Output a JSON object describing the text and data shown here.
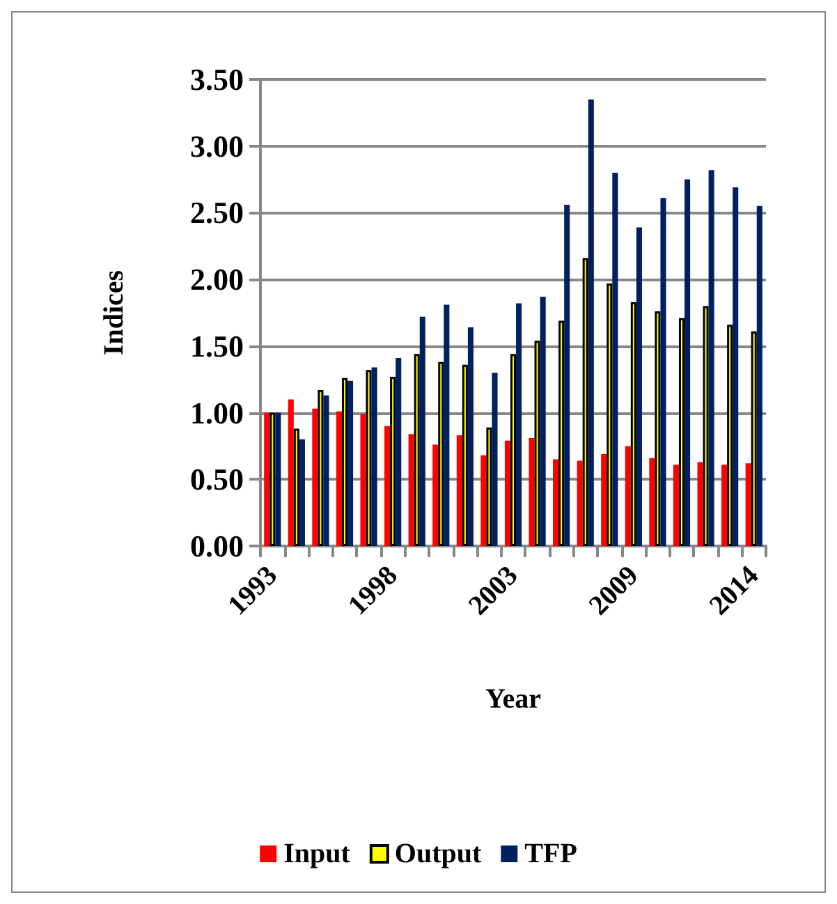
{
  "chart_data": {
    "type": "bar",
    "xlabel": "Year",
    "ylabel": "Indices",
    "categories": [
      "1993",
      null,
      null,
      null,
      null,
      "1998",
      null,
      null,
      null,
      null,
      "2003",
      null,
      null,
      null,
      null,
      "2009",
      null,
      null,
      null,
      null,
      "2014"
    ],
    "series": [
      {
        "name": "Input",
        "color": "#ff0000",
        "values": [
          1.0,
          1.1,
          1.03,
          1.01,
          0.99,
          0.9,
          0.84,
          0.76,
          0.83,
          0.68,
          0.79,
          0.81,
          0.65,
          0.64,
          0.69,
          0.75,
          0.66,
          0.61,
          0.63,
          0.61,
          0.62
        ]
      },
      {
        "name": "Output",
        "color": "#ffff00",
        "values": [
          1.0,
          0.88,
          1.17,
          1.26,
          1.32,
          1.27,
          1.44,
          1.38,
          1.36,
          0.89,
          1.44,
          1.54,
          1.69,
          2.16,
          1.97,
          1.83,
          1.76,
          1.71,
          1.8,
          1.66,
          1.61
        ]
      },
      {
        "name": "TFP",
        "color": "#002060",
        "values": [
          1.0,
          0.8,
          1.13,
          1.24,
          1.34,
          1.41,
          1.72,
          1.81,
          1.64,
          1.3,
          1.82,
          1.87,
          2.56,
          3.35,
          2.8,
          2.39,
          2.61,
          2.75,
          2.82,
          2.69,
          2.55
        ]
      }
    ],
    "ylim": [
      0,
      3.5
    ],
    "yticks": [
      {
        "value": 0,
        "label": "0.00"
      },
      {
        "value": 0.5,
        "label": "0.50"
      },
      {
        "value": 1,
        "label": "1.00"
      },
      {
        "value": 1.5,
        "label": "1.50"
      },
      {
        "value": 2,
        "label": "2.00"
      },
      {
        "value": 2.5,
        "label": "2.50"
      },
      {
        "value": 3,
        "label": "3.00"
      },
      {
        "value": 3.5,
        "label": "3.50"
      }
    ],
    "grid": "y",
    "legend": "bottom"
  }
}
